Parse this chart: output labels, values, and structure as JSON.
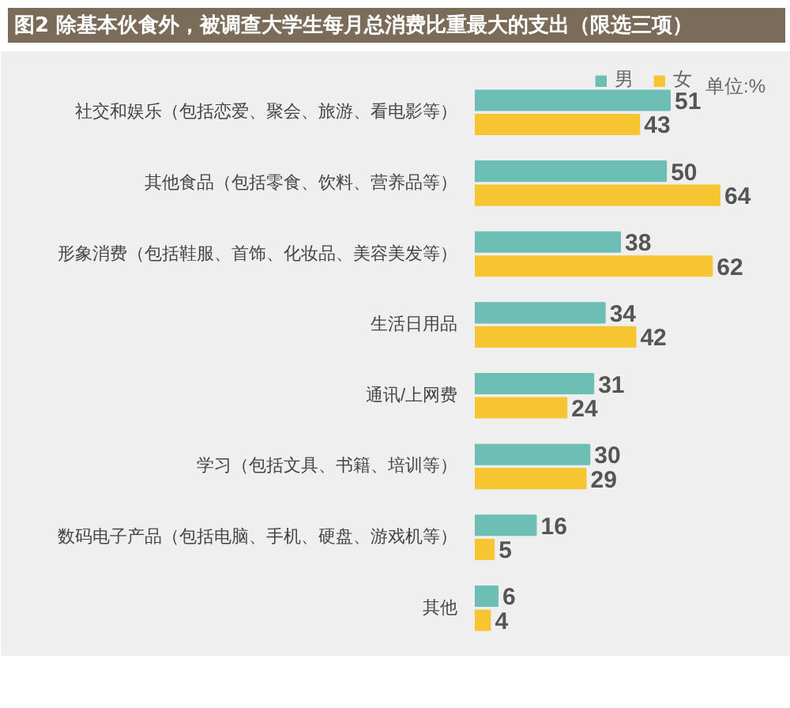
{
  "chart_data": {
    "type": "bar",
    "orientation": "horizontal",
    "title": "图2  除基本伙食外，被调查大学生每月总消费比重最大的支出（限选三项）",
    "categories": [
      "社交和娱乐（包括恋爱、聚会、旅游、看电影等）",
      "其他食品（包括零食、饮料、营养品等）",
      "形象消费（包括鞋服、首饰、化妆品、美容美发等）",
      "生活日用品",
      "通讯/上网费",
      "学习（包括文具、书籍、培训等）",
      "数码电子产品（包括电脑、手机、硬盘、游戏机等）",
      "其他"
    ],
    "series": [
      {
        "name": "男",
        "color": "#6dbfb5",
        "values": [
          51,
          50,
          38,
          34,
          31,
          30,
          16,
          6
        ]
      },
      {
        "name": "女",
        "color": "#f7c531",
        "values": [
          43,
          64,
          62,
          42,
          24,
          29,
          5,
          4
        ]
      }
    ],
    "data_labels": true,
    "legend": "top right",
    "annotations": [
      "单位:%"
    ]
  }
}
